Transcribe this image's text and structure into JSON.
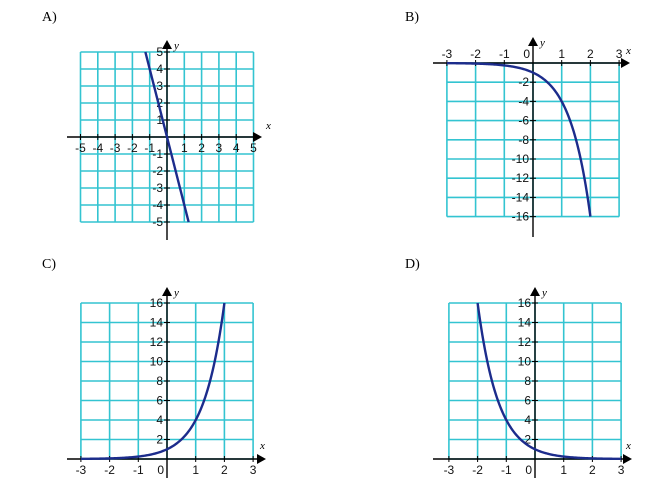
{
  "options": [
    {
      "id": "A",
      "label": "A)"
    },
    {
      "id": "B",
      "label": "B)"
    },
    {
      "id": "C",
      "label": "C)"
    },
    {
      "id": "D",
      "label": "D)"
    }
  ],
  "colors": {
    "grid": "#33c4d1",
    "axis": "#000000",
    "curve": "#1c2c8c"
  },
  "chart_data": [
    {
      "id": "A",
      "type": "line",
      "title": "",
      "xlabel": "x",
      "ylabel": "y",
      "xlim": [
        -5,
        5
      ],
      "ylim": [
        -5,
        5
      ],
      "grid": true,
      "x_ticks": [
        -5,
        -4,
        -3,
        -2,
        -1,
        1,
        2,
        3,
        4,
        5
      ],
      "y_ticks": [
        -5,
        -4,
        -3,
        -2,
        -1,
        1,
        2,
        3,
        4,
        5
      ],
      "x_tick_labels": [
        "-5",
        "-4",
        "-3",
        "-2",
        "-1",
        "1",
        "2",
        "3",
        "4",
        "5"
      ],
      "y_tick_labels": [
        "-5",
        "-4",
        "-3",
        "-2",
        "-1",
        "1",
        "2",
        "3",
        "4",
        "5"
      ],
      "origin_label": "",
      "function": "y = -4x",
      "series": [
        {
          "x": [
            -1.25,
            1.25
          ],
          "y": [
            5,
            -5
          ]
        }
      ]
    },
    {
      "id": "B",
      "type": "line",
      "title": "",
      "xlabel": "x",
      "ylabel": "y",
      "xlim": [
        -3,
        3
      ],
      "ylim": [
        -17,
        1
      ],
      "grid": true,
      "x_ticks": [
        -3,
        -2,
        -1,
        1,
        2,
        3
      ],
      "y_ticks": [
        -2,
        -4,
        -6,
        -8,
        -10,
        -12,
        -14,
        -16
      ],
      "x_tick_labels": [
        "-3",
        "-2",
        "-1",
        "1",
        "2",
        "3"
      ],
      "y_tick_labels": [
        "-2",
        "-4",
        "-6",
        "-8",
        "-10",
        "-12",
        "-14",
        "-16"
      ],
      "origin_label": "0",
      "function": "y = -4^x",
      "series": [
        {
          "x": [
            -3,
            -2.5,
            -2,
            -1.5,
            -1,
            -0.5,
            0,
            0.5,
            1,
            1.5,
            2
          ],
          "y": [
            -0.016,
            -0.031,
            -0.063,
            -0.125,
            -0.25,
            -0.5,
            -1,
            -2,
            -4,
            -8,
            -16
          ]
        }
      ]
    },
    {
      "id": "C",
      "type": "line",
      "title": "",
      "xlabel": "x",
      "ylabel": "y",
      "xlim": [
        -3,
        3
      ],
      "ylim": [
        -1,
        17
      ],
      "grid": true,
      "x_ticks": [
        -3,
        -2,
        -1,
        1,
        2,
        3
      ],
      "y_ticks": [
        2,
        4,
        6,
        8,
        10,
        12,
        14,
        16
      ],
      "x_tick_labels": [
        "-3",
        "-2",
        "-1",
        "1",
        "2",
        "3"
      ],
      "y_tick_labels": [
        "2",
        "4",
        "6",
        "8",
        "10",
        "12",
        "14",
        "16"
      ],
      "origin_label": "0",
      "function": "y = 4^x",
      "series": [
        {
          "x": [
            -3,
            -2.5,
            -2,
            -1.5,
            -1,
            -0.5,
            0,
            0.5,
            1,
            1.5,
            2
          ],
          "y": [
            0.016,
            0.031,
            0.063,
            0.125,
            0.25,
            0.5,
            1,
            2,
            4,
            8,
            16
          ]
        }
      ]
    },
    {
      "id": "D",
      "type": "line",
      "title": "",
      "xlabel": "x",
      "ylabel": "y",
      "xlim": [
        -3,
        3
      ],
      "ylim": [
        -1,
        17
      ],
      "grid": true,
      "x_ticks": [
        -3,
        -2,
        -1,
        1,
        2,
        3
      ],
      "y_ticks": [
        2,
        4,
        6,
        8,
        10,
        12,
        14,
        16
      ],
      "x_tick_labels": [
        "-3",
        "-2",
        "-1",
        "1",
        "2",
        "3"
      ],
      "y_tick_labels": [
        "2",
        "4",
        "6",
        "8",
        "10",
        "12",
        "14",
        "16"
      ],
      "origin_label": "0",
      "function": "y = (1/4)^x",
      "series": [
        {
          "x": [
            -2,
            -1.5,
            -1,
            -0.5,
            0,
            0.5,
            1,
            1.5,
            2,
            2.5,
            3
          ],
          "y": [
            16,
            8,
            4,
            2,
            1,
            0.5,
            0.25,
            0.125,
            0.063,
            0.031,
            0.016
          ]
        }
      ]
    }
  ]
}
